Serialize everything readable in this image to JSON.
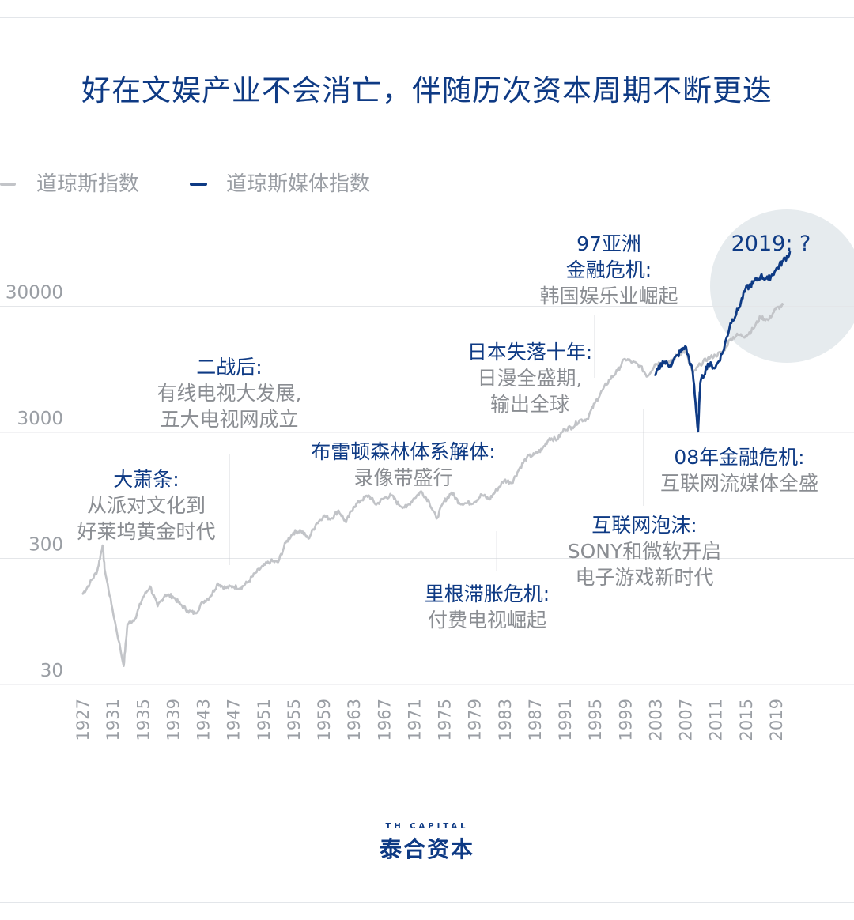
{
  "title": "好在文娱产业不会消亡，伴随历次资本周期不断更迭",
  "legend": [
    {
      "label": "道琼斯指数",
      "color": "#c2c4c8"
    },
    {
      "label": "道琼斯媒体指数",
      "color": "#0e3a84"
    }
  ],
  "annotations": {
    "depression": {
      "head": "大萧条:",
      "body": [
        "从派对文化到",
        "好莱坞黄金时代"
      ]
    },
    "postwar": {
      "head": "二战后:",
      "body": [
        "有线电视大发展,",
        "五大电视网成立"
      ]
    },
    "bretton": {
      "head": "布雷顿森林体系解体:",
      "body": [
        "录像带盛行"
      ]
    },
    "reagan": {
      "head": "里根滞胀危机:",
      "body": [
        "付费电视崛起"
      ]
    },
    "japan": {
      "head": "日本失落十年:",
      "body": [
        "日漫全盛期,",
        "输出全球"
      ]
    },
    "asia97": {
      "head": "97亚洲",
      "head2": "金融危机:",
      "body": [
        "韩国娱乐业崛起"
      ]
    },
    "dotcom": {
      "head": "互联网泡沫:",
      "body": [
        "SONY和微软开启",
        "电子游戏新时代"
      ]
    },
    "crisis08": {
      "head": "08年金融危机:",
      "body": [
        "互联网流媒体全盛"
      ]
    },
    "q2019": {
      "head": "2019: ?"
    }
  },
  "logo": {
    "en": "TH CAPITAL",
    "cn": "泰合资本"
  },
  "chart_data": {
    "type": "line",
    "y_scale": "log",
    "ylim": [
      30,
      100000
    ],
    "xlim": [
      1927,
      2021
    ],
    "grid": true,
    "yticks": [
      "30",
      "300",
      "3000",
      "30000"
    ],
    "ytick_values": [
      30,
      300,
      3000,
      30000
    ],
    "xticks": [
      "1927",
      "1931",
      "1935",
      "1939",
      "1943",
      "1947",
      "1951",
      "1955",
      "1959",
      "1963",
      "1967",
      "1971",
      "1975",
      "1979",
      "1983",
      "1987",
      "1991",
      "1995",
      "1999",
      "2003",
      "2007",
      "2011",
      "2015",
      "2019"
    ],
    "series": [
      {
        "name": "道琼斯指数",
        "color": "#c2c4c8",
        "x": [
          1927,
          1928,
          1929,
          1929.7,
          1930,
          1931,
          1932.5,
          1933,
          1934,
          1935,
          1936,
          1937,
          1938,
          1939,
          1940,
          1941,
          1942,
          1943,
          1944,
          1945,
          1946,
          1947,
          1948,
          1949,
          1950,
          1951,
          1952,
          1953,
          1954,
          1955,
          1956,
          1957,
          1958,
          1959,
          1960,
          1961,
          1962,
          1963,
          1964,
          1965,
          1966,
          1967,
          1968,
          1969,
          1970,
          1971,
          1972,
          1973,
          1974,
          1975,
          1976,
          1977,
          1978,
          1979,
          1980,
          1981,
          1982,
          1983,
          1984,
          1985,
          1986,
          1987,
          1988,
          1989,
          1990,
          1991,
          1992,
          1993,
          1994,
          1995,
          1996,
          1997,
          1998,
          1999,
          2000,
          2001,
          2002,
          2003,
          2004,
          2005,
          2006,
          2007,
          2008,
          2009,
          2010,
          2011,
          2012,
          2013,
          2014,
          2015,
          2016,
          2017,
          2018,
          2019,
          2020
        ],
        "y": [
          155,
          190,
          240,
          380,
          240,
          120,
          42,
          90,
          100,
          145,
          180,
          125,
          155,
          150,
          130,
          115,
          110,
          135,
          150,
          190,
          175,
          180,
          175,
          195,
          230,
          260,
          285,
          280,
          400,
          480,
          500,
          430,
          560,
          650,
          620,
          720,
          580,
          770,
          870,
          950,
          800,
          900,
          950,
          800,
          760,
          900,
          1020,
          850,
          620,
          850,
          1000,
          830,
          820,
          840,
          960,
          880,
          1050,
          1250,
          1200,
          1550,
          1900,
          2000,
          2200,
          2700,
          2630,
          3200,
          3300,
          3750,
          3830,
          5100,
          6450,
          7900,
          9200,
          11500,
          10800,
          10100,
          8340,
          10450,
          10800,
          10720,
          12460,
          13260,
          8780,
          10400,
          11600,
          12200,
          13100,
          16500,
          17800,
          17400,
          19800,
          24700,
          23300,
          28500,
          30600
        ]
      },
      {
        "name": "道琼斯媒体指数",
        "color": "#0e3a84",
        "x": [
          2003,
          2004,
          2005,
          2006,
          2007,
          2008,
          2008.7,
          2009,
          2010,
          2011,
          2012,
          2013,
          2014,
          2015,
          2016,
          2017,
          2018,
          2019,
          2020,
          2021
        ],
        "y": [
          8400,
          11000,
          10200,
          12300,
          14500,
          9000,
          3050,
          7400,
          10500,
          9800,
          13000,
          22000,
          28000,
          41000,
          46000,
          52000,
          49000,
          58000,
          69000,
          80000
        ]
      }
    ]
  }
}
